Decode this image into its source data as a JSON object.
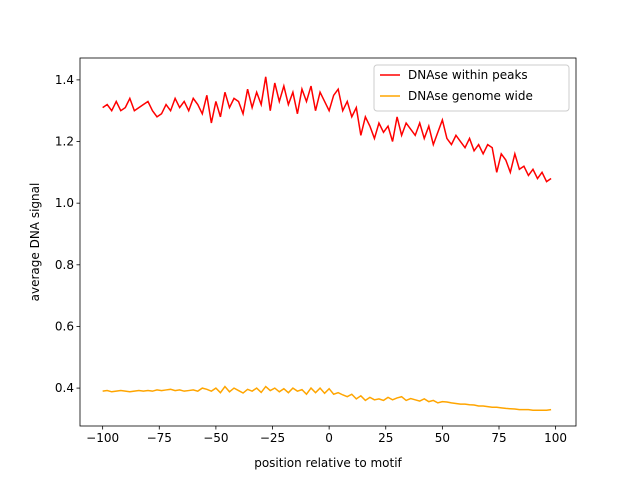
{
  "chart_data": {
    "type": "line",
    "xlabel": "position relative to motif",
    "ylabel": "average DNA signal",
    "xlim": [
      -110,
      109
    ],
    "ylim": [
      0.277,
      1.471
    ],
    "xticks": [
      {
        "value": -100,
        "label": "−100"
      },
      {
        "value": -75,
        "label": "−75"
      },
      {
        "value": -50,
        "label": "−50"
      },
      {
        "value": -25,
        "label": "−25"
      },
      0,
      25,
      50,
      75,
      100
    ],
    "yticks": [
      0.4,
      0.6,
      0.8,
      {
        "value": 1,
        "label": "1.0"
      },
      1.2,
      1.4
    ],
    "legend": "upper right",
    "x": [
      -100,
      -98,
      -96,
      -94,
      -92,
      -90,
      -88,
      -86,
      -84,
      -82,
      -80,
      -78,
      -76,
      -74,
      -72,
      -70,
      -68,
      -66,
      -64,
      -62,
      -60,
      -58,
      -56,
      -54,
      -52,
      -50,
      -48,
      -46,
      -44,
      -42,
      -40,
      -38,
      -36,
      -34,
      -32,
      -30,
      -28,
      -26,
      -24,
      -22,
      -20,
      -18,
      -16,
      -14,
      -12,
      -10,
      -8,
      -6,
      -4,
      -2,
      0,
      2,
      4,
      6,
      8,
      10,
      12,
      14,
      16,
      18,
      20,
      22,
      24,
      26,
      28,
      30,
      32,
      34,
      36,
      38,
      40,
      42,
      44,
      46,
      48,
      50,
      52,
      54,
      56,
      58,
      60,
      62,
      64,
      66,
      68,
      70,
      72,
      74,
      76,
      78,
      80,
      82,
      84,
      86,
      88,
      90,
      92,
      94,
      96,
      98
    ],
    "series": [
      {
        "name": "DNAse within peaks",
        "color": "#ff0000",
        "values": [
          1.31,
          1.32,
          1.3,
          1.33,
          1.3,
          1.31,
          1.34,
          1.3,
          1.31,
          1.32,
          1.33,
          1.3,
          1.28,
          1.29,
          1.32,
          1.3,
          1.34,
          1.31,
          1.33,
          1.3,
          1.34,
          1.32,
          1.29,
          1.35,
          1.26,
          1.33,
          1.28,
          1.36,
          1.31,
          1.34,
          1.33,
          1.29,
          1.37,
          1.31,
          1.36,
          1.32,
          1.41,
          1.3,
          1.39,
          1.33,
          1.38,
          1.32,
          1.36,
          1.29,
          1.37,
          1.33,
          1.38,
          1.3,
          1.36,
          1.33,
          1.3,
          1.35,
          1.37,
          1.3,
          1.33,
          1.28,
          1.31,
          1.22,
          1.28,
          1.25,
          1.21,
          1.26,
          1.23,
          1.25,
          1.2,
          1.28,
          1.22,
          1.26,
          1.24,
          1.22,
          1.26,
          1.21,
          1.25,
          1.19,
          1.23,
          1.27,
          1.21,
          1.19,
          1.22,
          1.2,
          1.18,
          1.21,
          1.17,
          1.19,
          1.16,
          1.19,
          1.18,
          1.1,
          1.16,
          1.14,
          1.1,
          1.16,
          1.11,
          1.12,
          1.09,
          1.11,
          1.08,
          1.1,
          1.07,
          1.08
        ]
      },
      {
        "name": "DNAse genome wide",
        "color": "#ffa500",
        "values": [
          0.39,
          0.392,
          0.388,
          0.39,
          0.392,
          0.39,
          0.388,
          0.39,
          0.392,
          0.39,
          0.392,
          0.39,
          0.394,
          0.392,
          0.394,
          0.396,
          0.392,
          0.394,
          0.39,
          0.392,
          0.394,
          0.39,
          0.4,
          0.396,
          0.39,
          0.4,
          0.385,
          0.405,
          0.388,
          0.4,
          0.392,
          0.384,
          0.396,
          0.39,
          0.4,
          0.386,
          0.405,
          0.392,
          0.4,
          0.388,
          0.398,
          0.385,
          0.4,
          0.39,
          0.395,
          0.38,
          0.4,
          0.385,
          0.4,
          0.383,
          0.398,
          0.38,
          0.385,
          0.378,
          0.372,
          0.38,
          0.365,
          0.375,
          0.36,
          0.37,
          0.362,
          0.365,
          0.36,
          0.37,
          0.362,
          0.368,
          0.372,
          0.36,
          0.366,
          0.362,
          0.358,
          0.365,
          0.356,
          0.36,
          0.352,
          0.356,
          0.355,
          0.352,
          0.35,
          0.348,
          0.348,
          0.346,
          0.345,
          0.342,
          0.342,
          0.34,
          0.338,
          0.338,
          0.336,
          0.334,
          0.333,
          0.332,
          0.33,
          0.33,
          0.33,
          0.328,
          0.328,
          0.328,
          0.328,
          0.33
        ]
      }
    ]
  }
}
